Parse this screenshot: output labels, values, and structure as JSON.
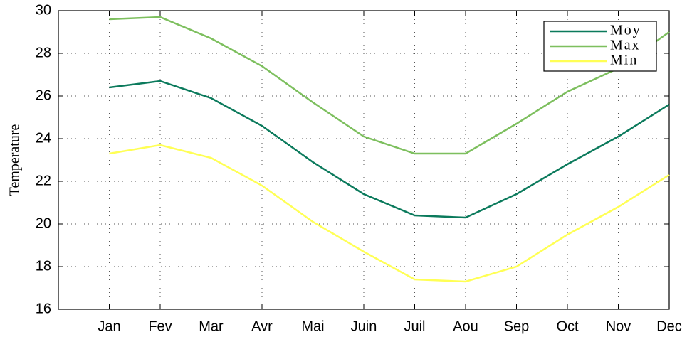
{
  "chart_data": {
    "type": "line",
    "y_label": "Temperature",
    "categories": [
      "Jan",
      "Fev",
      "Mar",
      "Avr",
      "Mai",
      "Juin",
      "Juil",
      "Aou",
      "Sep",
      "Oct",
      "Nov",
      "Dec"
    ],
    "series": [
      {
        "name": "Moy",
        "color": "#0b7a5c",
        "values": [
          26.4,
          26.7,
          25.9,
          24.6,
          22.9,
          21.4,
          20.4,
          20.3,
          21.4,
          22.8,
          24.1,
          25.6
        ]
      },
      {
        "name": "Max",
        "color": "#7dbf5e",
        "values": [
          29.6,
          29.7,
          28.7,
          27.4,
          25.7,
          24.1,
          23.3,
          23.3,
          24.7,
          26.2,
          27.3,
          29.0
        ]
      },
      {
        "name": "Min",
        "color": "#ffff55",
        "values": [
          23.3,
          23.7,
          23.1,
          21.8,
          20.1,
          18.7,
          17.4,
          17.3,
          18.0,
          19.5,
          20.8,
          22.3
        ]
      }
    ],
    "ylim": [
      16,
      30
    ],
    "yticks": [
      16,
      18,
      20,
      22,
      24,
      26,
      28,
      30
    ],
    "grid": true,
    "legend": "northeast"
  }
}
